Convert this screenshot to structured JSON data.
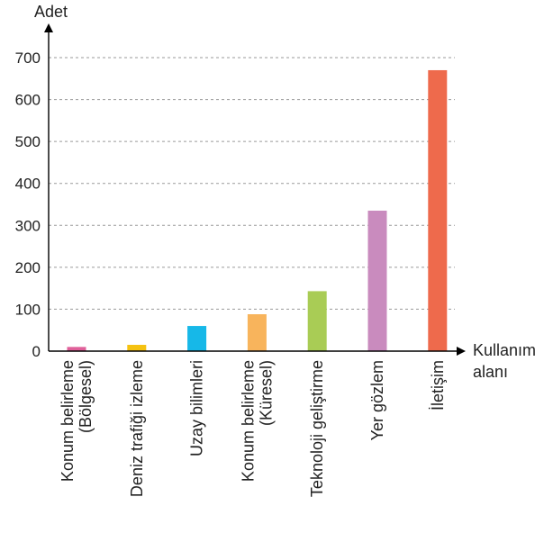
{
  "chart_data": {
    "type": "bar",
    "ylabel": "Adet",
    "xlabel_lines": [
      "Kullanım",
      "alanı"
    ],
    "ylim": [
      0,
      700
    ],
    "yticks": [
      0,
      100,
      200,
      300,
      400,
      500,
      600,
      700
    ],
    "grid": true,
    "categories": [
      {
        "lines": [
          "Konum belirleme",
          "(Bölgesel)"
        ],
        "value": 10,
        "color": "#e0609a"
      },
      {
        "lines": [
          "Deniz trafiği izleme"
        ],
        "value": 15,
        "color": "#f5c211"
      },
      {
        "lines": [
          "Uzay bilimleri"
        ],
        "value": 60,
        "color": "#16b8e8"
      },
      {
        "lines": [
          "Konum belirleme",
          "(Küresel)"
        ],
        "value": 88,
        "color": "#f8b45c"
      },
      {
        "lines": [
          "Teknoloji geliştirme"
        ],
        "value": 143,
        "color": "#a9cc55"
      },
      {
        "lines": [
          "Yer gözlem"
        ],
        "value": 335,
        "color": "#c98bbe"
      },
      {
        "lines": [
          "İletişim"
        ],
        "value": 670,
        "color": "#ee6a4c"
      }
    ]
  }
}
